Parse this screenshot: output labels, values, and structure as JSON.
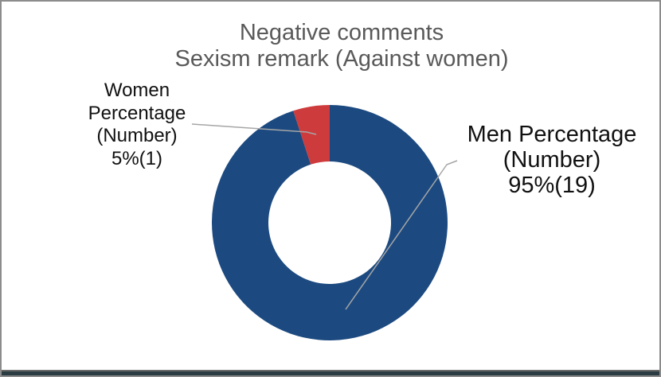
{
  "title": {
    "line1": "Negative comments",
    "line2": "Sexism remark (Against women)",
    "color": "#595959"
  },
  "data_labels": {
    "women": {
      "lines": [
        "Women",
        "Percentage",
        "(Number)",
        "5%(1)"
      ]
    },
    "men": {
      "lines": [
        "Men Percentage",
        "(Number)",
        "95%(19)"
      ]
    }
  },
  "chart_data": {
    "type": "pie",
    "subtype": "donut",
    "title": "Negative comments / Sexism remark (Against women)",
    "categories": [
      "Men Percentage (Number)",
      "Women Percentage (Number)"
    ],
    "values": [
      95,
      5
    ],
    "counts": [
      19,
      1
    ],
    "value_unit": "percent",
    "colors": [
      "#1C4A80",
      "#CD3B3C"
    ],
    "slice_names": [
      "donut-slice-men",
      "donut-slice-women"
    ],
    "start_angle": "12 o'clock",
    "direction": "clockwise",
    "hole_ratio": 0.52,
    "leader_line_color": "#a6a6a6",
    "legend_position": "none",
    "data_label_texts": [
      "Men Percentage (Number) 95%(19)",
      "Women Percentage (Number) 5%(1)"
    ]
  }
}
